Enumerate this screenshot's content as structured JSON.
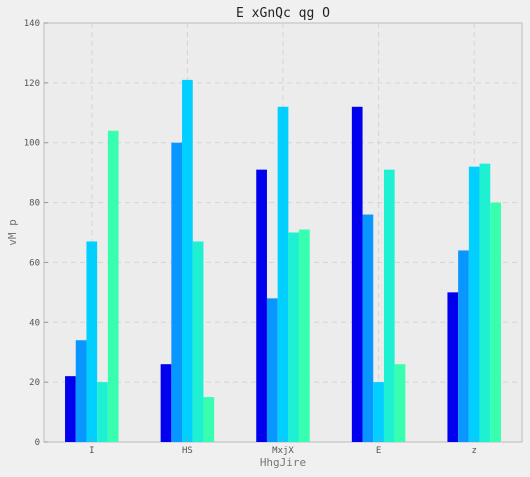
{
  "chart_data": {
    "type": "bar",
    "title": "E xGnQc qg O",
    "xlabel": "HhgJire",
    "ylabel": "vM p",
    "categories": [
      "I",
      "HS",
      "MxjX",
      "E",
      "z"
    ],
    "ylim": [
      0,
      140
    ],
    "yticks": [
      0,
      20,
      40,
      60,
      80,
      100,
      120,
      140
    ],
    "grid": true,
    "series": [
      {
        "values": [
          22,
          26,
          91,
          112,
          50
        ],
        "color": "#0000ee"
      },
      {
        "values": [
          34,
          100,
          48,
          76,
          64
        ],
        "color": "#0a96ff"
      },
      {
        "values": [
          67,
          121,
          112,
          20,
          92
        ],
        "color": "#00cfff"
      },
      {
        "values": [
          20,
          67,
          70,
          91,
          93
        ],
        "color": "#1ef0d2"
      },
      {
        "values": [
          104,
          15,
          71,
          26,
          80
        ],
        "color": "#38ffb0"
      }
    ]
  }
}
